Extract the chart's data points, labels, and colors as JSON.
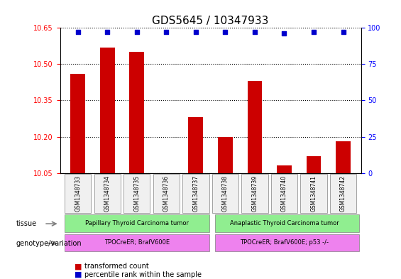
{
  "title": "GDS5645 / 10347933",
  "samples": [
    "GSM1348733",
    "GSM1348734",
    "GSM1348735",
    "GSM1348736",
    "GSM1348737",
    "GSM1348738",
    "GSM1348739",
    "GSM1348740",
    "GSM1348741",
    "GSM1348742"
  ],
  "transformed_count": [
    10.46,
    10.57,
    10.55,
    10.05,
    10.28,
    10.2,
    10.43,
    10.08,
    10.12,
    10.18
  ],
  "percentile_rank": [
    97,
    97,
    97,
    97,
    97,
    97,
    97,
    96,
    97,
    97
  ],
  "ylim_left": [
    10.05,
    10.65
  ],
  "ylim_right": [
    0,
    100
  ],
  "yticks_left": [
    10.05,
    10.2,
    10.35,
    10.5,
    10.65
  ],
  "yticks_right": [
    0,
    25,
    50,
    75,
    100
  ],
  "bar_color": "#cc0000",
  "dot_color": "#0000cc",
  "tissue_group1": "Papillary Thyroid Carcinoma tumor",
  "tissue_group2": "Anaplastic Thyroid Carcinoma tumor",
  "genotype_group1": "TPOCreER; BrafV600E",
  "genotype_group2": "TPOCreER; BrafV600E; p53 -/-",
  "tissue_color1": "#90ee90",
  "tissue_color2": "#90ee90",
  "genotype_color": "#ee82ee",
  "group1_count": 5,
  "group2_count": 5,
  "legend_red_label": "transformed count",
  "legend_blue_label": "percentile rank within the sample",
  "background_color": "#f0f0f0"
}
